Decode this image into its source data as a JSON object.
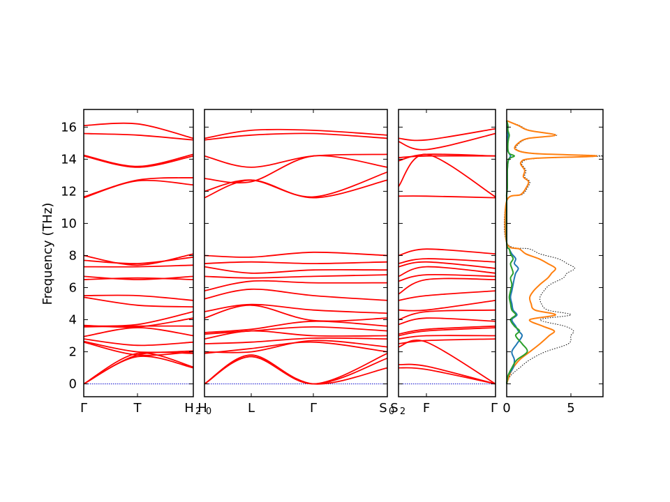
{
  "chart_data": {
    "type": "line",
    "ylabel": "Frequency (THz)",
    "ylim": [
      -0.8,
      17.1
    ],
    "yticks": [
      0,
      2,
      4,
      6,
      8,
      10,
      12,
      14,
      16
    ],
    "grid": false,
    "line_color": "#ff0000",
    "zero_line_color": "#0000cc",
    "panels": [
      {
        "path": [
          "Γ",
          "T",
          "H₂"
        ],
        "tick_labels": [
          "Γ",
          "T",
          "H",
          "2"
        ],
        "modes": [
          [
            0,
            1.7,
            1.0
          ],
          [
            0,
            1.9,
            1.05
          ],
          [
            0,
            1.8,
            1.9
          ],
          [
            2.6,
            1.8,
            2.0
          ],
          [
            2.65,
            2.0,
            2.05
          ],
          [
            2.8,
            2.4,
            2.6
          ],
          [
            2.95,
            3.5,
            3.0
          ],
          [
            3.55,
            3.6,
            3.6
          ],
          [
            3.65,
            3.55,
            4.1
          ],
          [
            3.6,
            3.7,
            4.5
          ],
          [
            5.4,
            4.9,
            4.8
          ],
          [
            5.5,
            5.5,
            5.2
          ],
          [
            6.5,
            6.6,
            6.5
          ],
          [
            6.7,
            6.5,
            6.7
          ],
          [
            7.3,
            7.3,
            7.4
          ],
          [
            7.7,
            7.5,
            7.9
          ],
          [
            8.0,
            7.4,
            8.1
          ],
          [
            11.6,
            12.65,
            12.4
          ],
          [
            11.65,
            12.7,
            12.85
          ],
          [
            14.2,
            13.5,
            14.2
          ],
          [
            14.25,
            13.55,
            14.3
          ],
          [
            15.6,
            15.5,
            15.2
          ],
          [
            16.1,
            16.2,
            15.3
          ]
        ]
      },
      {
        "path": [
          "H₀",
          "L",
          "Γ",
          "S₀"
        ],
        "tick_labels": [
          "H",
          "0",
          "L",
          "Γ",
          "S",
          "0"
        ],
        "modes": [
          [
            0,
            1.7,
            0,
            1.0
          ],
          [
            0,
            1.8,
            0,
            1.6
          ],
          [
            0,
            1.7,
            0,
            1.9
          ],
          [
            1.9,
            2.2,
            2.6,
            2.0
          ],
          [
            2.0,
            2.0,
            2.7,
            2.3
          ],
          [
            2.5,
            2.6,
            2.85,
            2.8
          ],
          [
            2.8,
            3.3,
            3.0,
            3.0
          ],
          [
            3.1,
            3.3,
            3.55,
            3.3
          ],
          [
            3.2,
            3.4,
            3.9,
            3.6
          ],
          [
            4.1,
            4.9,
            3.95,
            4.1
          ],
          [
            4.5,
            4.95,
            4.6,
            4.4
          ],
          [
            5.3,
            5.9,
            5.5,
            5.2
          ],
          [
            5.8,
            6.4,
            6.3,
            6.3
          ],
          [
            6.7,
            6.6,
            6.7,
            6.8
          ],
          [
            7.3,
            6.9,
            7.1,
            7.1
          ],
          [
            7.5,
            7.6,
            7.5,
            7.6
          ],
          [
            8.0,
            7.9,
            8.2,
            8.0
          ],
          [
            11.6,
            12.7,
            11.6,
            12.7
          ],
          [
            12.0,
            12.7,
            11.65,
            13.2
          ],
          [
            12.8,
            12.6,
            14.2,
            13.5
          ],
          [
            14.2,
            13.5,
            14.2,
            14.3
          ],
          [
            15.2,
            15.5,
            15.6,
            15.3
          ],
          [
            15.3,
            15.8,
            15.8,
            15.5
          ]
        ]
      },
      {
        "path": [
          "S₂",
          "F",
          "Γ"
        ],
        "tick_labels": [
          "S",
          "2",
          "F",
          "Γ"
        ],
        "modes": [
          [
            1.0,
            0.9,
            0
          ],
          [
            1.2,
            1.1,
            0
          ],
          [
            2.3,
            2.6,
            0
          ],
          [
            2.5,
            2.7,
            2.8
          ],
          [
            2.8,
            3.0,
            3.0
          ],
          [
            3.0,
            3.3,
            3.5
          ],
          [
            3.1,
            3.4,
            3.6
          ],
          [
            3.7,
            4.1,
            3.9
          ],
          [
            4.0,
            4.5,
            4.6
          ],
          [
            4.6,
            4.6,
            5.2
          ],
          [
            5.2,
            5.5,
            5.8
          ],
          [
            5.6,
            6.5,
            6.5
          ],
          [
            6.4,
            6.8,
            6.7
          ],
          [
            6.7,
            7.3,
            6.9
          ],
          [
            7.3,
            7.6,
            7.2
          ],
          [
            7.5,
            7.8,
            7.6
          ],
          [
            8.0,
            8.4,
            8.1
          ],
          [
            11.7,
            11.7,
            11.6
          ],
          [
            12.3,
            14.3,
            11.65
          ],
          [
            13.9,
            14.3,
            14.2
          ],
          [
            14.1,
            14.2,
            14.2
          ],
          [
            15.1,
            14.6,
            15.6
          ],
          [
            15.3,
            15.2,
            15.9
          ]
        ]
      }
    ],
    "dos": {
      "xlim": [
        0,
        7.5
      ],
      "xticks": [
        0,
        5
      ],
      "freq": [
        0,
        0.5,
        1.0,
        1.5,
        2.0,
        2.5,
        3.0,
        3.3,
        3.6,
        4.0,
        4.3,
        4.6,
        5.0,
        5.4,
        5.8,
        6.2,
        6.6,
        6.9,
        7.2,
        7.5,
        7.8,
        8.1,
        8.4,
        8.8,
        11.4,
        11.8,
        12.2,
        12.6,
        12.9,
        13.3,
        13.8,
        14.05,
        14.2,
        14.35,
        14.6,
        15.0,
        15.3,
        15.5,
        15.8,
        16.1,
        16.4
      ],
      "series": [
        {
          "name": "total",
          "color": "#000000",
          "dashed": true,
          "values": [
            0,
            0.3,
            1.0,
            1.8,
            3.0,
            4.8,
            5.0,
            5.2,
            4.5,
            2.6,
            5.0,
            3.2,
            2.7,
            2.6,
            2.9,
            3.4,
            4.4,
            4.7,
            5.3,
            4.7,
            4.0,
            2.6,
            1.8,
            0,
            0,
            1.2,
            1.6,
            1.8,
            1.4,
            1.5,
            1.2,
            2.4,
            7.5,
            2.4,
            0.8,
            1.0,
            1.8,
            3.9,
            1.8,
            1.0,
            0
          ]
        },
        {
          "name": "orange",
          "color": "#ff7f0e",
          "dashed": false,
          "values": [
            0,
            0.2,
            0.5,
            1.0,
            1.8,
            2.6,
            3.3,
            3.7,
            2.8,
            1.8,
            3.8,
            2.2,
            1.9,
            1.8,
            2.1,
            2.6,
            3.2,
            3.5,
            3.8,
            3.2,
            2.5,
            1.5,
            1.0,
            0,
            0,
            1.1,
            1.5,
            1.7,
            1.3,
            1.4,
            1.1,
            2.1,
            7.0,
            2.2,
            0.7,
            0.9,
            1.7,
            3.8,
            1.7,
            0.9,
            0
          ]
        },
        {
          "name": "blue",
          "color": "#1f77b4",
          "dashed": false,
          "values": [
            0,
            0.1,
            0.5,
            0.6,
            0.4,
            0.8,
            1.2,
            0.9,
            0.7,
            0.4,
            0.8,
            0.5,
            0.4,
            0.3,
            0.4,
            0.5,
            0.6,
            0.7,
            0.9,
            0.6,
            0.7,
            0.4,
            0.2,
            0,
            0,
            0,
            0.05,
            0.05,
            0.05,
            0.05,
            0.1,
            0.2,
            0.3,
            0.2,
            0.05,
            0.05,
            0.05,
            0.1,
            0.05,
            0.05,
            0
          ]
        },
        {
          "name": "green",
          "color": "#2ca02c",
          "dashed": false,
          "values": [
            0,
            0.1,
            0.4,
            0.8,
            1.6,
            1.2,
            0.7,
            1.0,
            0.6,
            0.3,
            0.7,
            0.4,
            0.3,
            0.2,
            0.3,
            0.4,
            0.3,
            0.5,
            0.4,
            0.3,
            0.5,
            0.3,
            0.2,
            0,
            0,
            0,
            0.05,
            0.05,
            0.05,
            0.05,
            0.1,
            0.2,
            0.6,
            0.2,
            0.1,
            0.1,
            0.15,
            0.2,
            0.1,
            0.1,
            0
          ]
        }
      ]
    }
  }
}
